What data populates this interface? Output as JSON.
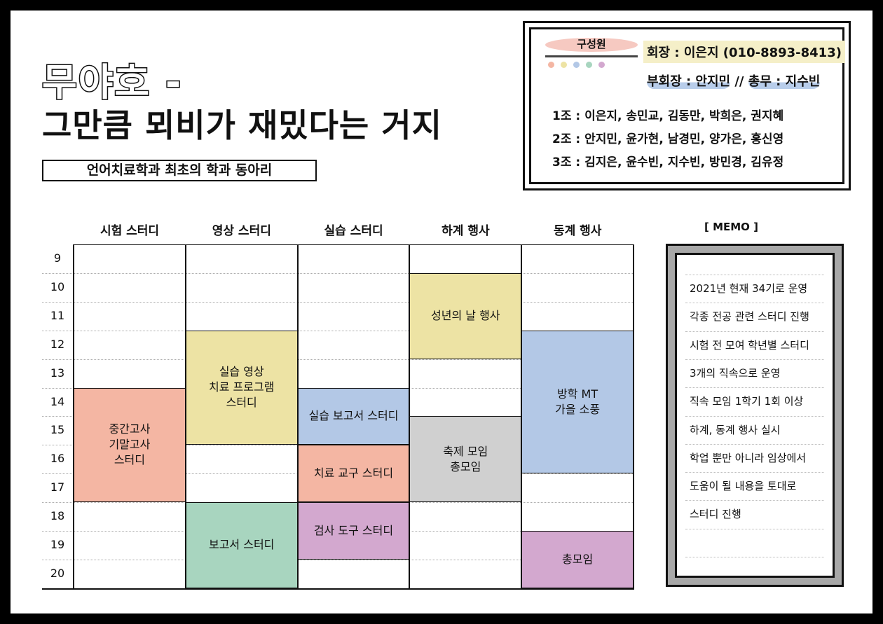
{
  "title": {
    "line1": "무야호 -",
    "line2": "그만큼 뫼비가 재밌다는 거지",
    "subtitle": "언어치료학과 최초의 학과 동아리"
  },
  "members": {
    "label": "구성원",
    "dot_colors": [
      "#f4b6a3",
      "#ede3a4",
      "#b3c8e6",
      "#a8d5bf",
      "#d3a8cf"
    ],
    "president": "회장 : 이은지 (010-8893-8413)",
    "vice_parts": [
      "부회장 : 안지민",
      " // ",
      "총무 : 지수빈"
    ],
    "teams": [
      "1조 : 이은지, 송민교, 김동만, 박희은, 권지혜",
      "2조 : 안지민, 윤가현, 남경민, 양가은, 홍신영",
      "3조 : 김지은, 윤수빈, 지수빈, 방민경, 김유정"
    ]
  },
  "timetable": {
    "columns": [
      "시험 스터디",
      "영상 스터디",
      "실습 스터디",
      "하계 행사",
      "동계 행사"
    ],
    "hours": [
      "9",
      "10",
      "11",
      "12",
      "13",
      "14",
      "15",
      "16",
      "17",
      "18",
      "19",
      "20"
    ],
    "blocks": [
      {
        "col": 0,
        "start": "14",
        "end": "17",
        "label": "중간고사\n기말고사\n스터디",
        "color": "#f4b6a3"
      },
      {
        "col": 1,
        "start": "12",
        "end": "15",
        "label": "실습 영상\n치료 프로그램\n스터디",
        "color": "#ede3a4"
      },
      {
        "col": 1,
        "start": "18",
        "end": "20",
        "label": "보고서 스터디",
        "color": "#a8d5bf"
      },
      {
        "col": 2,
        "start": "14",
        "end": "15",
        "label": "실습 보고서 스터디",
        "color": "#b3c8e6"
      },
      {
        "col": 2,
        "start": "16",
        "end": "17",
        "label": "치료 교구 스터디",
        "color": "#f4b6a3"
      },
      {
        "col": 2,
        "start": "18",
        "end": "19",
        "label": "검사 도구 스터디",
        "color": "#d3a8cf"
      },
      {
        "col": 3,
        "start": "10",
        "end": "12",
        "label": "성년의 날 행사",
        "color": "#ede3a4"
      },
      {
        "col": 3,
        "start": "15",
        "end": "17",
        "label": "축제 모임\n총모임",
        "color": "#d0d0d0"
      },
      {
        "col": 4,
        "start": "12",
        "end": "16",
        "label": "방학 MT\n가을 소풍",
        "color": "#b3c8e6"
      },
      {
        "col": 4,
        "start": "19",
        "end": "20",
        "label": "총모임",
        "color": "#d3a8cf"
      }
    ]
  },
  "memo": {
    "title": "[ MEMO ]",
    "lines": [
      "2021년 현재 34기로 운영",
      "각종 전공 관련 스터디 진행",
      "시험 전 모여 학년별 스터디",
      "3개의 직속으로 운영",
      "직속 모임 1학기 1회 이상",
      "하계, 동계 행사 실시",
      "학업 뿐만 아니라 임상에서",
      "도움이 될 내용을 토대로",
      "스터디 진행"
    ]
  }
}
